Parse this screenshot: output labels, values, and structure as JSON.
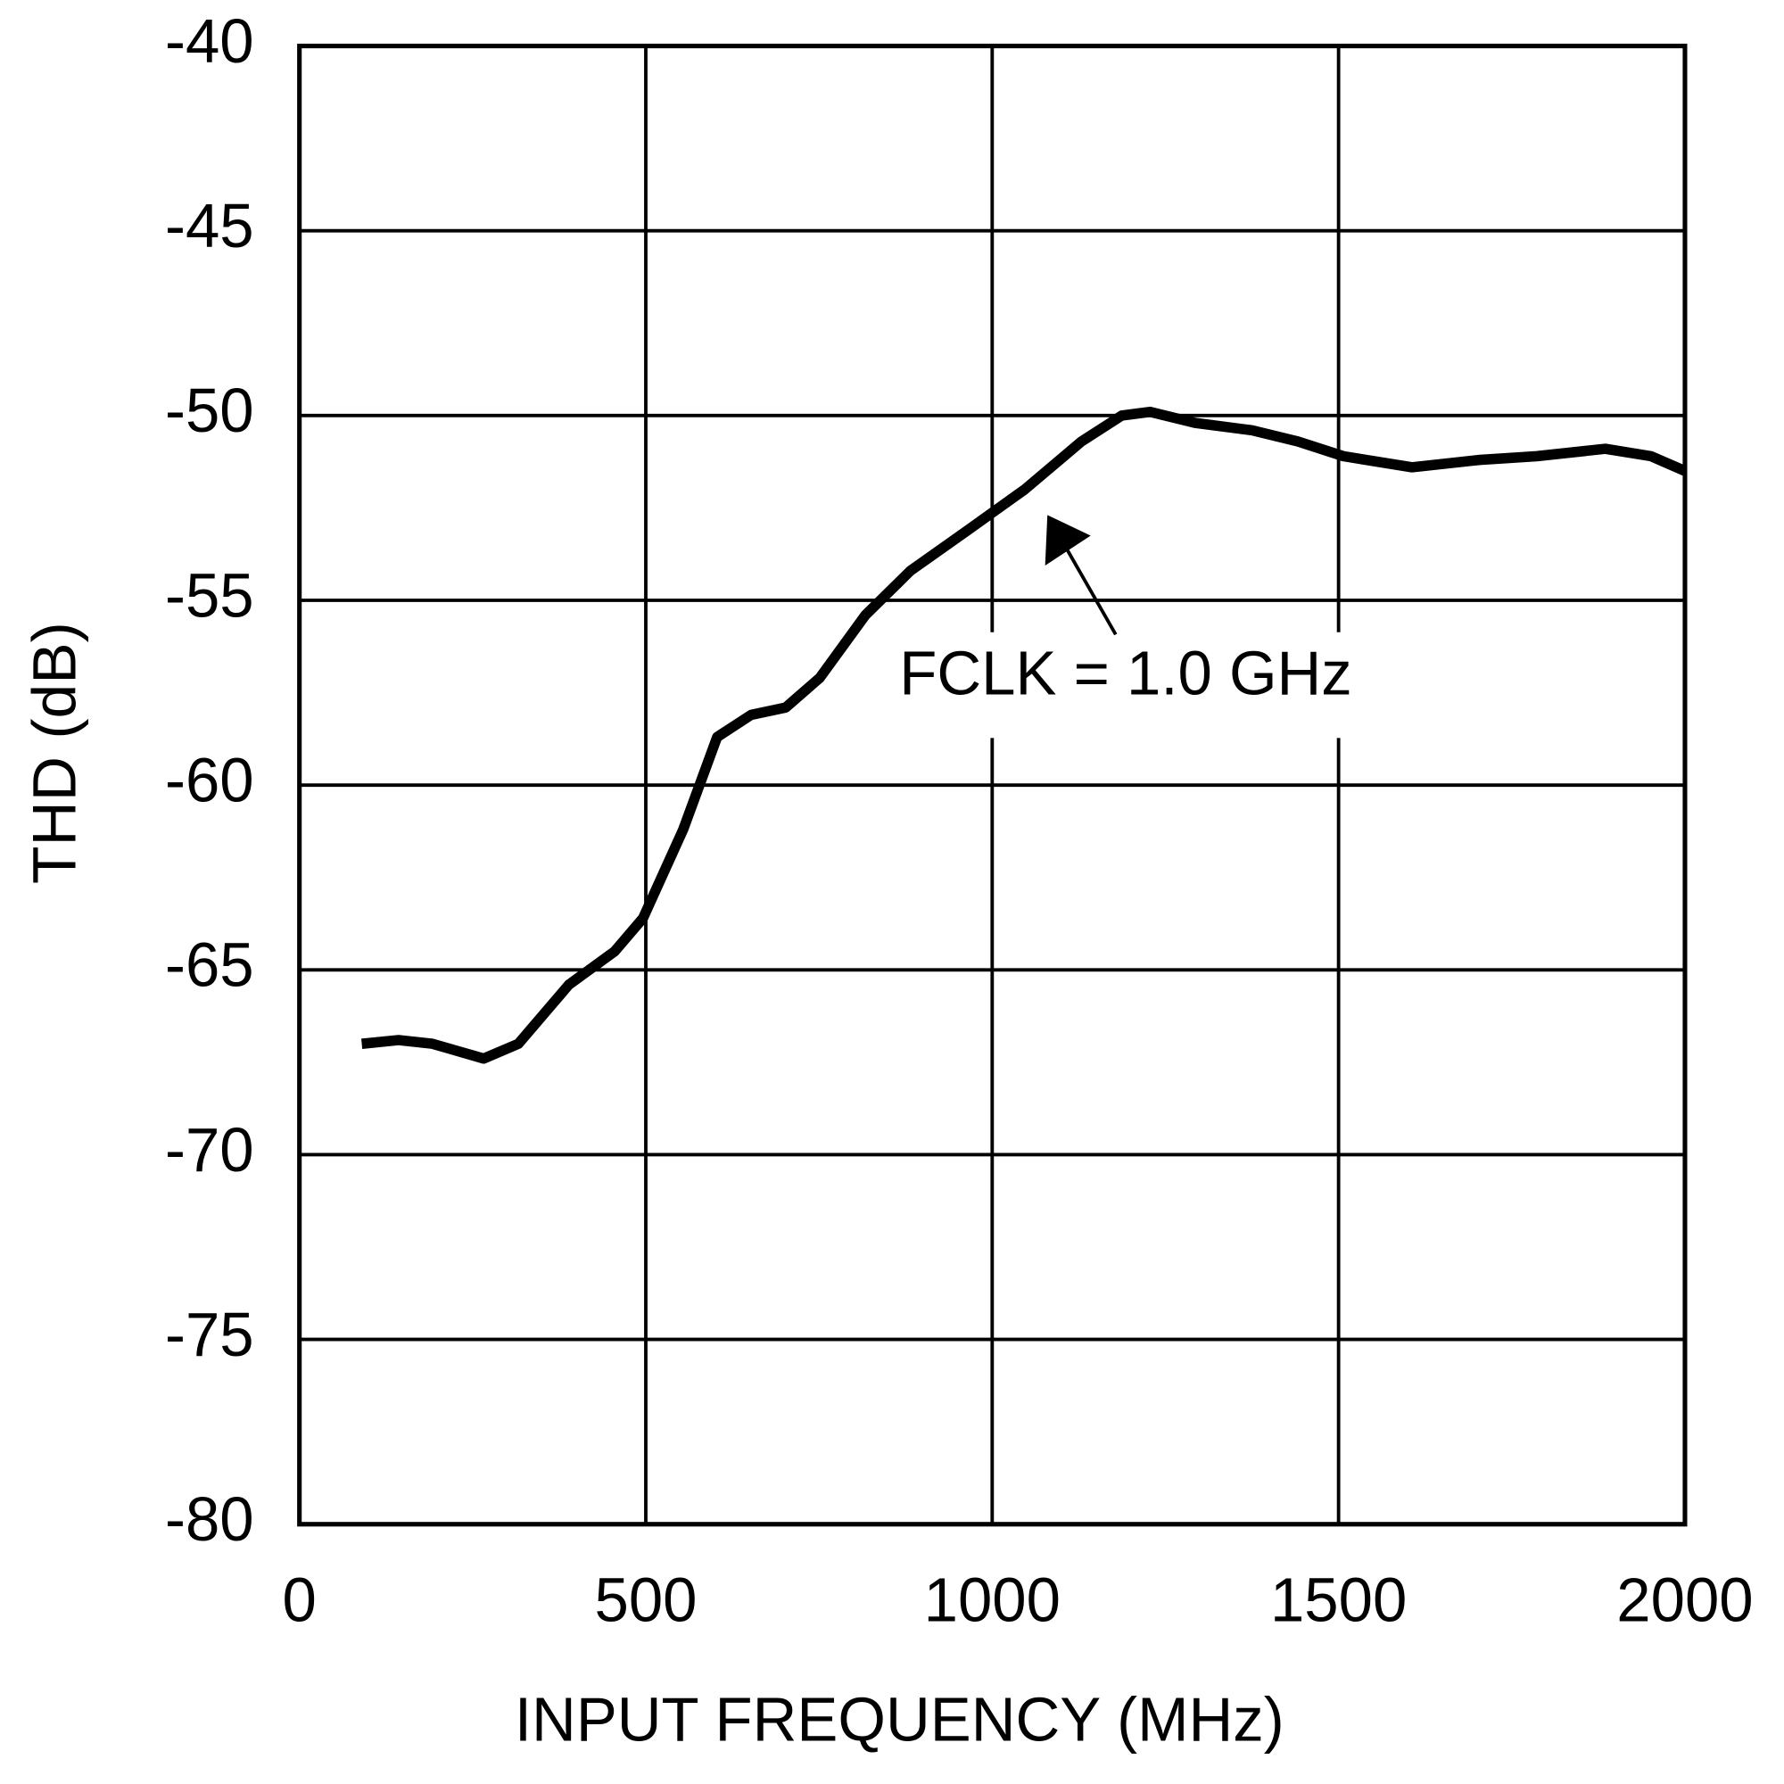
{
  "chart_data": {
    "type": "line",
    "xlabel": "INPUT FREQUENCY (MHz)",
    "ylabel": "THD (dB)",
    "annotation": "FCLK = 1.0 GHz",
    "x": [
      90,
      143,
      192,
      266,
      316,
      389,
      455,
      496,
      554,
      603,
      652,
      702,
      751,
      817,
      882,
      965,
      1047,
      1129,
      1187,
      1228,
      1293,
      1375,
      1441,
      1507,
      1606,
      1704,
      1786,
      1885,
      1951,
      2000
    ],
    "series": [
      {
        "color": "#000000",
        "values": [
          -67.0,
          -66.9,
          -67.0,
          -67.4,
          -67.0,
          -65.4,
          -64.5,
          -63.6,
          -61.2,
          -58.7,
          -58.1,
          -57.9,
          -57.1,
          -55.4,
          -54.2,
          -53.1,
          -52.0,
          -50.7,
          -50.0,
          -49.9,
          -50.2,
          -50.4,
          -50.7,
          -51.1,
          -51.4,
          -51.2,
          -51.1,
          -50.9,
          -51.1,
          -51.5
        ]
      }
    ],
    "xlim": [
      0,
      2000
    ],
    "xticks": [
      0,
      500,
      1000,
      1500,
      2000
    ],
    "ylim": [
      -80,
      -40
    ],
    "yticks": [
      -80,
      -75,
      -70,
      -65,
      -60,
      -55,
      -50,
      -45,
      -40
    ],
    "grid": true
  }
}
